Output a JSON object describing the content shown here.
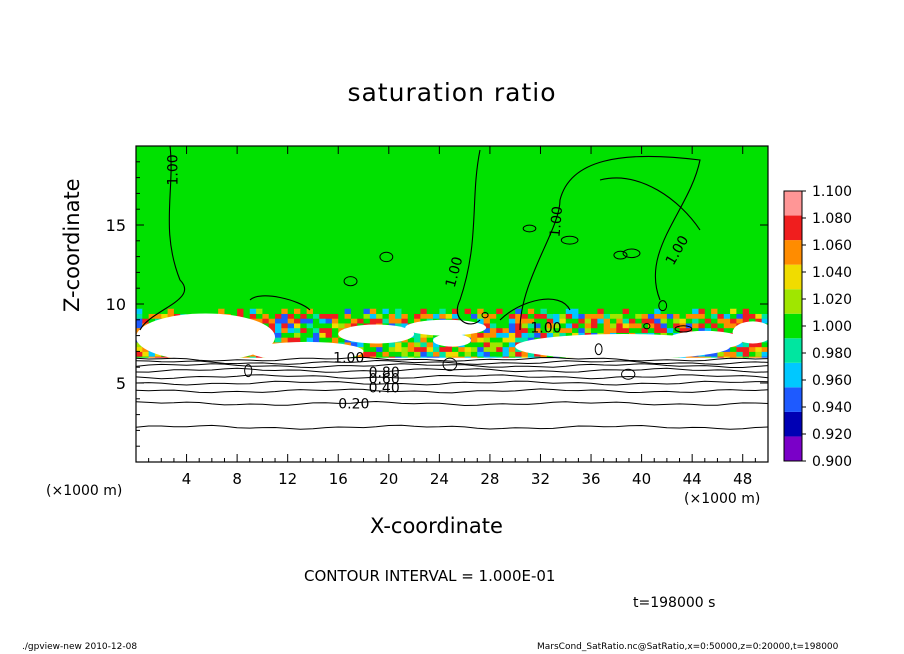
{
  "chart_data": {
    "type": "heatmap",
    "title": "saturation ratio",
    "xlabel": "X-coordinate",
    "ylabel": "Z-coordinate",
    "x_unit": "(×1000 m)",
    "y_unit": "(×1000 m)",
    "xlim": [
      0,
      50
    ],
    "ylim": [
      0,
      20
    ],
    "xticks": [
      4,
      8,
      12,
      16,
      20,
      24,
      28,
      32,
      36,
      40,
      44,
      48
    ],
    "yticks": [
      5,
      10,
      15
    ],
    "colorbar": {
      "levels": [
        0.9,
        0.92,
        0.94,
        0.96,
        0.98,
        1.0,
        1.02,
        1.04,
        1.06,
        1.08,
        1.1
      ],
      "labels": [
        "1.100",
        "1.080",
        "1.060",
        "1.040",
        "1.020",
        "1.000",
        "0.980",
        "0.960",
        "0.940",
        "0.920",
        "0.900"
      ],
      "colors": [
        "#7a00c8",
        "#0000b4",
        "#1e5aff",
        "#00c8ff",
        "#00e6a0",
        "#00e100",
        "#a0e600",
        "#f0dc00",
        "#ff8c00",
        "#f01e1e",
        "#ff9696"
      ]
    },
    "field": {
      "below_threshold_top_km": 6.6,
      "below_color": "#ffffff",
      "active_layer_km": [
        6.4,
        9.3
      ],
      "above_value": 1.0
    },
    "contour_levels_labeled": [
      "0.20",
      "0.40",
      "0.60",
      "0.80",
      "1.00"
    ],
    "contour_interval_text": "CONTOUR INTERVAL = 1.000E-01",
    "time_text": "t=198000 s"
  },
  "footer": {
    "left": "./gpview-new   2010-12-08",
    "right": "MarsCond_SatRatio.nc@SatRatio,x=0:50000,z=0:20000,t=198000"
  }
}
